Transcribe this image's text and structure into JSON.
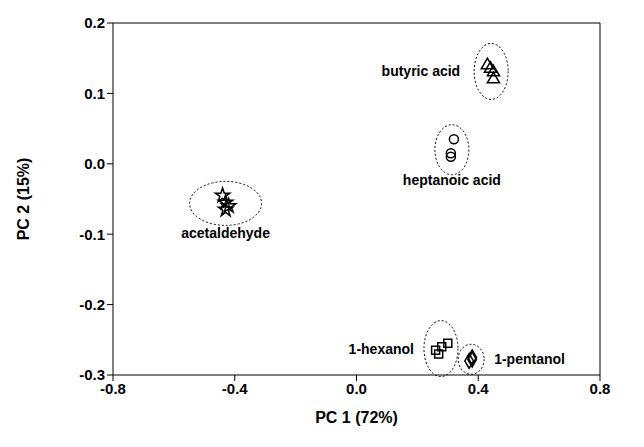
{
  "chart_data": {
    "type": "scatter",
    "x_label": "PC 1 (72%)",
    "y_label": "PC 2 (15%)",
    "xlim": [
      -0.8,
      0.8
    ],
    "xticks": [
      -0.8,
      -0.4,
      {
        "value": 0,
        "label": "0.0"
      },
      0.4,
      0.8
    ],
    "ylim": [
      -0.3,
      0.2
    ],
    "yticks": [
      -0.3,
      -0.2,
      -0.1,
      {
        "value": 0,
        "label": "0.0"
      },
      0.1,
      0.2
    ],
    "grid": false,
    "series": [
      {
        "name": "acetaldehyde",
        "color": "#000000",
        "marker": "star",
        "x": [
          -0.44,
          -0.43,
          -0.42,
          -0.43
        ],
        "values": [
          -0.045,
          -0.055,
          -0.06,
          -0.065
        ]
      },
      {
        "name": "butyric acid",
        "color": "#000000",
        "marker": "triangle",
        "x": [
          0.43,
          0.44,
          0.45,
          0.45
        ],
        "values": [
          0.14,
          0.135,
          0.13,
          0.12
        ]
      },
      {
        "name": "heptanoic acid",
        "color": "#000000",
        "marker": "circle",
        "x": [
          0.32,
          0.31,
          0.31
        ],
        "values": [
          0.035,
          0.015,
          0.01
        ]
      },
      {
        "name": "1-hexanol",
        "color": "#000000",
        "marker": "square",
        "x": [
          0.26,
          0.28,
          0.3,
          0.27
        ],
        "values": [
          -0.265,
          -0.26,
          -0.255,
          -0.27
        ]
      },
      {
        "name": "1-pentanol",
        "color": "#000000",
        "marker": "diamond",
        "x": [
          0.38,
          0.37,
          0.38
        ],
        "values": [
          -0.275,
          -0.28,
          -0.278
        ]
      }
    ]
  }
}
